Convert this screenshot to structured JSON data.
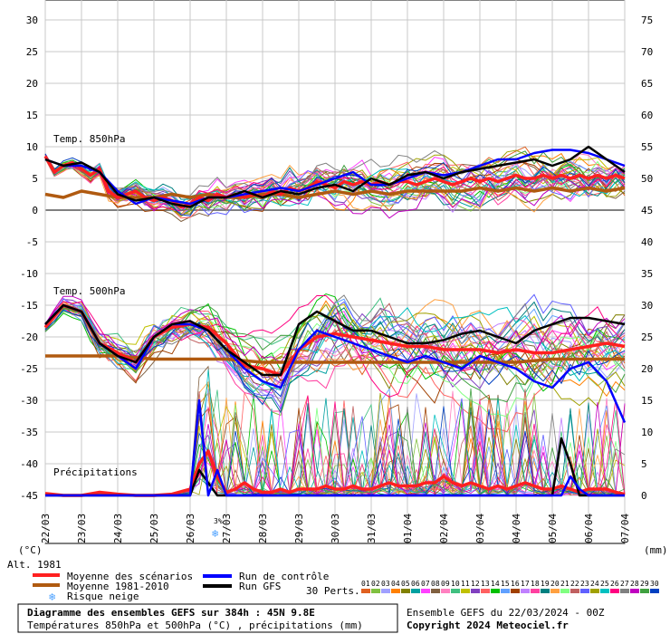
{
  "chart_data": {
    "type": "line",
    "layout_note": "",
    "left_axis": {
      "unit": "(°C)",
      "ticks": [
        30,
        25,
        20,
        15,
        10,
        5,
        0,
        -5,
        -10,
        -15,
        -20,
        -25,
        -30,
        -35,
        -40,
        -45
      ],
      "ylim": [
        -45,
        30
      ]
    },
    "right_axis": {
      "unit": "(mm)",
      "ticks": [
        75,
        70,
        65,
        60,
        55,
        50,
        45,
        40,
        35,
        30,
        25,
        20,
        15,
        10,
        5,
        0
      ],
      "ylim": [
        0,
        75
      ]
    },
    "x_ticks": [
      "22/03",
      "23/03",
      "24/03",
      "25/03",
      "26/03",
      "27/03",
      "28/03",
      "29/03",
      "30/03",
      "31/03",
      "01/04",
      "02/04",
      "03/04",
      "04/04",
      "05/04",
      "06/04",
      "07/04"
    ],
    "grid": true,
    "panel_labels": {
      "t850": "Temp. 850hPa",
      "t500": "Temp. 500hPa",
      "precip": "Précipitations"
    },
    "alt_label": "Alt. 1981",
    "snow_risk": {
      "label": "3%",
      "date": "26/03 18h"
    },
    "series": [
      {
        "name": "Moyenne des scénarios (850hPa)",
        "color": "#ff2020",
        "t": [
          0,
          6,
          12,
          18,
          24,
          30,
          36,
          42,
          48,
          54,
          60,
          66,
          72,
          78,
          84,
          90,
          96,
          102,
          108,
          114,
          120,
          126,
          132,
          138,
          144,
          150,
          156,
          162,
          168,
          174,
          180,
          186,
          192,
          198,
          204,
          210,
          216,
          222,
          228,
          234,
          240,
          246,
          252,
          258,
          264,
          270,
          276,
          282,
          288,
          294,
          300,
          306,
          312,
          318,
          324,
          330,
          336,
          342,
          348,
          354,
          360,
          366,
          372,
          378,
          384
        ],
        "values": [
          8.5,
          6,
          7,
          7.5,
          6.5,
          5.5,
          6.5,
          3,
          2,
          2.5,
          3,
          2,
          1.5,
          2,
          1.5,
          0.5,
          1,
          2,
          1.5,
          2.5,
          2,
          2.5,
          2,
          2.5,
          2,
          3,
          2.5,
          3.5,
          3,
          3.5,
          4.5,
          4,
          3.5,
          4.5,
          4,
          4.5,
          4,
          4.5,
          4,
          4.5,
          4.5,
          4,
          4.5,
          5,
          4.5,
          4,
          4.5,
          5,
          4.5,
          5,
          4.5,
          5,
          5.5,
          5,
          5,
          5.5,
          5,
          5.5,
          5,
          5.5,
          5,
          5.5,
          5,
          5.5,
          5
        ]
      },
      {
        "name": "Moyenne 1981-2010 (850hPa)",
        "color": "#b05a10",
        "t": [
          0,
          12,
          24,
          36,
          48,
          60,
          72,
          84,
          96,
          108,
          120,
          132,
          144,
          156,
          168,
          180,
          192,
          204,
          216,
          228,
          240,
          252,
          264,
          276,
          288,
          300,
          312,
          324,
          336,
          348,
          360,
          372,
          384
        ],
        "values": [
          2.5,
          2,
          3,
          2.5,
          2,
          2,
          2,
          2.5,
          2,
          2.5,
          2,
          2,
          2.5,
          2.5,
          2,
          2.5,
          3,
          2.5,
          3,
          2.5,
          3,
          3,
          3,
          3,
          3.5,
          3,
          3.5,
          3,
          3.5,
          3,
          3.5,
          3,
          3.5
        ]
      },
      {
        "name": "Run de contrôle (850hPa)",
        "color": "#0000ff",
        "t": [
          0,
          12,
          24,
          36,
          48,
          60,
          72,
          84,
          96,
          108,
          120,
          132,
          144,
          156,
          168,
          180,
          192,
          204,
          216,
          228,
          240,
          252,
          264,
          276,
          288,
          300,
          312,
          324,
          336,
          348,
          360,
          372,
          384
        ],
        "values": [
          8,
          7,
          7,
          6,
          3,
          1,
          2,
          1.5,
          1,
          2,
          2,
          2.5,
          3,
          3.5,
          3,
          4,
          5,
          6,
          4,
          4,
          5,
          6,
          5.5,
          6,
          7,
          8,
          8,
          9,
          9.5,
          9.5,
          9,
          8,
          7
        ]
      },
      {
        "name": "Run GFS (850hPa)",
        "color": "#000000",
        "t": [
          0,
          12,
          24,
          36,
          48,
          60,
          72,
          84,
          96,
          108,
          120,
          132,
          144,
          156,
          168,
          180,
          192,
          204,
          216,
          228,
          240,
          252,
          264,
          276,
          288,
          300,
          312,
          324,
          336,
          348,
          360,
          372,
          384
        ],
        "values": [
          8,
          7,
          7.5,
          6,
          2.5,
          1.5,
          2,
          1,
          0.5,
          2,
          2,
          3,
          2,
          3,
          2.5,
          3.5,
          4,
          3,
          5,
          4,
          5.5,
          6,
          5,
          6,
          6.5,
          7,
          7.5,
          8,
          7,
          8,
          10,
          8,
          6
        ]
      },
      {
        "name": "Moyenne des scénarios (500hPa)",
        "color": "#ff2020",
        "t": [
          0,
          12,
          24,
          36,
          48,
          60,
          72,
          84,
          96,
          108,
          120,
          132,
          144,
          156,
          168,
          180,
          192,
          204,
          216,
          228,
          240,
          252,
          264,
          276,
          288,
          300,
          312,
          324,
          336,
          348,
          360,
          372,
          384
        ],
        "values": [
          -18.5,
          -15,
          -16,
          -21,
          -22.5,
          -24,
          -20,
          -18.5,
          -18,
          -18.5,
          -21,
          -24.5,
          -25,
          -26,
          -22,
          -20,
          -19.5,
          -20,
          -20.5,
          -21,
          -21.5,
          -21.5,
          -22,
          -22,
          -22,
          -22.5,
          -22,
          -22.5,
          -22.5,
          -22,
          -21.5,
          -21,
          -21.5
        ]
      },
      {
        "name": "Moyenne 1981-2010 (500hPa)",
        "color": "#b05a10",
        "t": [
          0,
          24,
          48,
          72,
          96,
          120,
          144,
          168,
          192,
          216,
          240,
          264,
          288,
          312,
          336,
          360,
          384
        ],
        "values": [
          -23,
          -23,
          -23,
          -23.5,
          -23.5,
          -23.5,
          -24,
          -24,
          -24,
          -24,
          -24,
          -24,
          -24,
          -24,
          -23.5,
          -23.5,
          -23.5
        ]
      },
      {
        "name": "Run de contrôle (500hPa)",
        "color": "#0000ff",
        "t": [
          0,
          12,
          24,
          36,
          48,
          60,
          72,
          84,
          96,
          108,
          120,
          132,
          144,
          156,
          168,
          180,
          192,
          204,
          216,
          228,
          240,
          252,
          264,
          276,
          288,
          300,
          312,
          324,
          336,
          348,
          360,
          372,
          384
        ],
        "values": [
          -18,
          -15,
          -16,
          -21,
          -23,
          -25,
          -20,
          -18,
          -18,
          -19,
          -22,
          -25,
          -27,
          -28,
          -22,
          -19,
          -20,
          -21,
          -22,
          -23,
          -24,
          -23,
          -24,
          -25,
          -23,
          -24,
          -25,
          -27,
          -28,
          -25,
          -24,
          -27,
          -33.5
        ]
      },
      {
        "name": "Run GFS (500hPa)",
        "color": "#000000",
        "t": [
          0,
          12,
          24,
          36,
          48,
          60,
          72,
          84,
          96,
          108,
          120,
          132,
          144,
          156,
          168,
          180,
          192,
          204,
          216,
          228,
          240,
          252,
          264,
          276,
          288,
          300,
          312,
          324,
          336,
          348,
          360,
          372,
          384
        ],
        "values": [
          -18,
          -15,
          -16,
          -21,
          -23,
          -24,
          -20,
          -18,
          -17.5,
          -19,
          -22,
          -24,
          -26,
          -26,
          -18,
          -16,
          -17.5,
          -19,
          -19,
          -20,
          -21,
          -21,
          -20.5,
          -19.5,
          -19,
          -20,
          -21,
          -19,
          -18,
          -17,
          -17,
          -17.5,
          -18
        ]
      },
      {
        "name": "Moyenne des scénarios (précip mm)",
        "color": "#ff2020",
        "t": [
          0,
          12,
          24,
          36,
          48,
          60,
          72,
          84,
          96,
          102,
          108,
          114,
          120,
          126,
          132,
          138,
          144,
          150,
          156,
          162,
          168,
          174,
          180,
          186,
          192,
          198,
          204,
          210,
          216,
          222,
          228,
          234,
          240,
          246,
          252,
          258,
          264,
          270,
          276,
          282,
          288,
          294,
          300,
          306,
          312,
          318,
          324,
          330,
          336,
          342,
          348,
          354,
          360,
          366,
          372,
          378,
          384
        ],
        "values": [
          0.3,
          0,
          0,
          0.5,
          0.2,
          0,
          0,
          0.2,
          1,
          5,
          7,
          3,
          0.5,
          1,
          2,
          1,
          0.5,
          0.5,
          1,
          0.5,
          1,
          1,
          1,
          1.5,
          1,
          1,
          1.5,
          1,
          1,
          1.5,
          2,
          1.5,
          1.5,
          1.5,
          2,
          2,
          3,
          2,
          1.5,
          2,
          1.5,
          1,
          1.5,
          1,
          1.5,
          2,
          1.5,
          1,
          1,
          1.5,
          1,
          0.5,
          1,
          1,
          1,
          0.5,
          0.2
        ]
      },
      {
        "name": "Run de contrôle (précip mm)",
        "color": "#0000ff",
        "t": [
          0,
          12,
          24,
          36,
          48,
          60,
          72,
          84,
          96,
          102,
          108,
          114,
          120,
          126,
          132,
          138,
          144,
          150,
          156,
          162,
          168,
          174,
          180,
          186,
          192,
          198,
          204,
          210,
          216,
          222,
          228,
          234,
          240,
          246,
          252,
          258,
          264,
          270,
          276,
          282,
          288,
          294,
          300,
          306,
          312,
          318,
          324,
          330,
          336,
          342,
          348,
          354,
          360,
          366,
          372,
          378,
          384
        ],
        "values": [
          0,
          0,
          0,
          0,
          0,
          0,
          0,
          0,
          0,
          15,
          0,
          4,
          0,
          0,
          0,
          0,
          0,
          0,
          0,
          0,
          0,
          0,
          0,
          0,
          0,
          0,
          0,
          0,
          0,
          0,
          0,
          0,
          0,
          0,
          0,
          0,
          0,
          0,
          0,
          0,
          0,
          0,
          0,
          0,
          0,
          0,
          0,
          0,
          0,
          0,
          3,
          1,
          0,
          0,
          0,
          0,
          0
        ]
      },
      {
        "name": "Run GFS (précip mm)",
        "color": "#000000",
        "t": [
          0,
          12,
          24,
          36,
          48,
          60,
          72,
          84,
          96,
          102,
          108,
          114,
          120,
          126,
          132,
          138,
          144,
          150,
          156,
          162,
          168,
          174,
          180,
          186,
          192,
          198,
          204,
          210,
          216,
          222,
          228,
          234,
          240,
          246,
          252,
          258,
          264,
          270,
          276,
          282,
          288,
          294,
          300,
          306,
          312,
          318,
          324,
          330,
          336,
          342,
          348,
          354,
          360,
          366,
          372,
          378,
          384
        ],
        "values": [
          0,
          0,
          0,
          0,
          0,
          0,
          0,
          0,
          0,
          4,
          2,
          0,
          0,
          0,
          0,
          0,
          0,
          0,
          0,
          0,
          0,
          0,
          0,
          0,
          0,
          0,
          0,
          0,
          0,
          0,
          0,
          0,
          0,
          0,
          0,
          0,
          0,
          0,
          0,
          0,
          0,
          0,
          0,
          0,
          0,
          0,
          0,
          0,
          0,
          9,
          5,
          0,
          0,
          0,
          0,
          0,
          0
        ]
      }
    ],
    "spike_note": "",
    "legend": {
      "mean": "Moyenne des scénarios",
      "clim": "Moyenne 1981-2010",
      "snow": "Risque neige",
      "control": "Run de contrôle",
      "gfs": "Run GFS",
      "perts_label": "30 Perts.",
      "perts_numbers": [
        "01",
        "02",
        "03",
        "04",
        "05",
        "06",
        "07",
        "08",
        "09",
        "10",
        "11",
        "12",
        "13",
        "14",
        "15",
        "16",
        "17",
        "18",
        "19",
        "20",
        "21",
        "22",
        "23",
        "24",
        "25",
        "26",
        "27",
        "28",
        "29",
        "30"
      ],
      "perts_colors": [
        "#e06020",
        "#80c040",
        "#a0a0ff",
        "#ff8000",
        "#808000",
        "#00a0a0",
        "#ff40ff",
        "#806040",
        "#ff80c0",
        "#40c080",
        "#c0c000",
        "#8040c0",
        "#ff6060",
        "#00c000",
        "#60a0ff",
        "#a04000",
        "#c080ff",
        "#ff40a0",
        "#008080",
        "#ffa040",
        "#80ff80",
        "#c06060",
        "#6060ff",
        "#a0a000",
        "#00c0c0",
        "#ff0080",
        "#808080",
        "#c000c0",
        "#40a040",
        "#0040c0"
      ]
    },
    "footer": {
      "title": "Diagramme des ensembles GEFS sur 384h : 45N 9.8E",
      "subtitle": "Températures 850hPa et 500hPa (°C) , précipitations (mm)",
      "run": "Ensemble GEFS du 22/03/2024 - 00Z",
      "copyright": "Copyright 2024 Meteociel.fr"
    }
  }
}
